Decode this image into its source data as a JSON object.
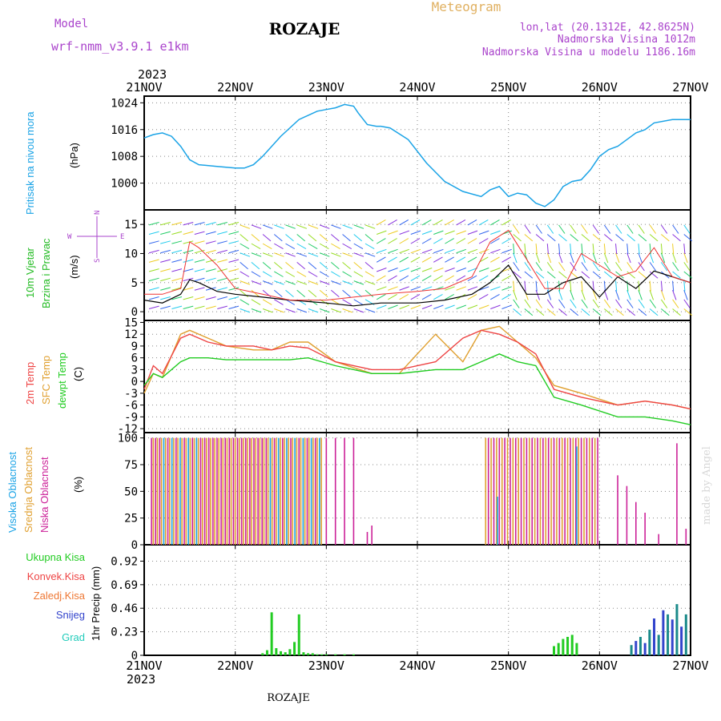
{
  "header": {
    "model_label": "Model",
    "model_name": "wrf-nmm_v3.9.1 e1km",
    "title": "ROZAJE",
    "meteogram": "Meteogram",
    "lonlat": "lon,lat (20.1312E, 42.8625N)",
    "elevation": "Nadmorska Visina 1012m",
    "model_elevation": "Nadmorska Visina u modelu 1186.16m",
    "footer": "ROZAJE",
    "credit": "made by Angel"
  },
  "colors": {
    "pressure": "#1aa3e6",
    "wind_label": "#22bb22",
    "temp2m": "#ee4444",
    "sfc": "#e0a030",
    "dewpt": "#22cc22",
    "cloud_high": "#1aa3e6",
    "cloud_mid": "#e0a030",
    "cloud_low": "#cc2299",
    "purple": "#aa44cc",
    "orange": "#e0b060",
    "rain_total": "#22cc22",
    "rain_conv": "#ee4444",
    "rain_frz": "#ee7733",
    "snow": "#3344cc",
    "graupel": "#22ccbb"
  },
  "time_axis": {
    "top_year": "2023",
    "bottom_year": "2023",
    "dates": [
      "21NOV",
      "22NOV",
      "23NOV",
      "24NOV",
      "25NOV",
      "26NOV",
      "27NOV"
    ]
  },
  "chart_data": [
    {
      "type": "line",
      "panel": "pressure",
      "ylabel_left": "Pritisak na nivou mora",
      "ylabel_unit": "(hPa)",
      "yticks": [
        "1000",
        "1008",
        "1016",
        "1024"
      ],
      "ylim": [
        992,
        1026
      ],
      "x": [
        0,
        0.1,
        0.2,
        0.3,
        0.4,
        0.5,
        0.6,
        0.8,
        1.0,
        1.1,
        1.2,
        1.3,
        1.5,
        1.7,
        1.9,
        2.0,
        2.1,
        2.2,
        2.3,
        2.35,
        2.45,
        2.55,
        2.6,
        2.7,
        2.9,
        3.1,
        3.3,
        3.5,
        3.7,
        3.8,
        3.9,
        4.0,
        4.1,
        4.2,
        4.3,
        4.4,
        4.5,
        4.6,
        4.7,
        4.8,
        4.9,
        5.0,
        5.1,
        5.2,
        5.3,
        5.4,
        5.5,
        5.6,
        5.8,
        6.0
      ],
      "series": [
        {
          "values": [
            1013.5,
            1014.5,
            1015,
            1014,
            1011,
            1007,
            1005.5,
            1005,
            1004.5,
            1004.5,
            1005.5,
            1008,
            1014,
            1019,
            1021.5,
            1022,
            1022.5,
            1023.5,
            1023,
            1021,
            1017.5,
            1017,
            1017,
            1016.5,
            1013,
            1006,
            1000.5,
            997.5,
            996,
            998,
            999,
            996,
            997,
            996.5,
            994,
            993,
            995,
            999,
            1000.5,
            1001,
            1004,
            1008,
            1010,
            1011,
            1013,
            1015,
            1016,
            1018,
            1019,
            1019
          ]
        }
      ]
    },
    {
      "type": "line",
      "panel": "wind",
      "ylabel_left": "10m Vjetar Brzina i Pravac",
      "ylabel_unit": "(m/s)",
      "compass": {
        "w": "W",
        "e": "E",
        "n": "N",
        "s": "S"
      },
      "yticks": [
        "0",
        "5",
        "10",
        "15"
      ],
      "ylim": [
        -1.5,
        17.5
      ],
      "x": [
        0,
        0.2,
        0.4,
        0.5,
        0.6,
        0.8,
        1.0,
        1.3,
        1.6,
        2.0,
        2.3,
        2.6,
        3.0,
        3.3,
        3.6,
        3.8,
        4.0,
        4.2,
        4.4,
        4.6,
        4.8,
        5.0,
        5.2,
        5.4,
        5.6,
        5.8,
        6.0
      ],
      "series": [
        {
          "values": [
            2,
            1.5,
            3,
            5.5,
            5,
            3.5,
            3,
            2.5,
            2,
            1.5,
            1,
            1.5,
            1.5,
            2,
            3,
            5,
            8,
            3,
            3,
            5,
            6,
            2.5,
            6,
            4,
            7,
            6,
            5
          ]
        },
        {
          "values": [
            3,
            3,
            4,
            12,
            11,
            8,
            4,
            3,
            2,
            2,
            2.5,
            3,
            3.5,
            4,
            6,
            12,
            14,
            9,
            4,
            4,
            10,
            8,
            6,
            7,
            11,
            6,
            5
          ]
        }
      ]
    },
    {
      "type": "line",
      "panel": "temperature",
      "series": [
        {
          "name": "2m Temp",
          "values": [
            -2,
            4,
            2,
            11,
            12,
            10,
            9,
            9,
            8,
            9,
            8.5,
            5,
            3,
            3,
            5,
            11,
            13,
            12,
            10,
            7,
            -2,
            -4,
            -6,
            -5,
            -6,
            -7
          ]
        },
        {
          "name": "SFC Temp",
          "values": [
            -3,
            2,
            1,
            12,
            13,
            11,
            9,
            8,
            8,
            10,
            10,
            5,
            2,
            2,
            12,
            5,
            13,
            14,
            10,
            6,
            -1,
            -3,
            -6,
            -5,
            -6,
            -7
          ]
        },
        {
          "name": "dewpt Temp",
          "values": [
            -1,
            2,
            1,
            5,
            6,
            6,
            5.5,
            5.5,
            5.5,
            5.5,
            6,
            4,
            2,
            2,
            3,
            3,
            5,
            7,
            5,
            4,
            -4,
            -6,
            -9,
            -9,
            -10,
            -11
          ]
        }
      ],
      "x": [
        0,
        0.1,
        0.2,
        0.4,
        0.5,
        0.7,
        0.9,
        1.2,
        1.4,
        1.6,
        1.8,
        2.1,
        2.5,
        2.8,
        3.2,
        3.5,
        3.7,
        3.9,
        4.1,
        4.3,
        4.5,
        4.8,
        5.2,
        5.5,
        5.8,
        6.0
      ],
      "yticks": [
        "-12",
        "-9",
        "-6",
        "-3",
        "0",
        "3",
        "6",
        "9",
        "12",
        "15"
      ],
      "ylim": [
        -13,
        15.5
      ]
    },
    {
      "type": "bar",
      "panel": "clouds",
      "series_names": [
        "Visoka Oblacnost",
        "Srednja Oblacnost",
        "Niska Oblacnost"
      ],
      "ylabel_unit": "(%)",
      "yticks": [
        "0",
        "25",
        "50",
        "75",
        "100"
      ],
      "ylim": [
        0,
        105
      ]
    },
    {
      "type": "bar",
      "panel": "precip",
      "legend": [
        "Ukupna Kisa",
        "Konvek.Kisa",
        "Zaledj.Kisa",
        "Snijeg",
        "Grad"
      ],
      "ylabel_unit": "1hr Precip (mm)",
      "yticks": [
        "0",
        "0.23",
        "0.46",
        "0.69",
        "0.92"
      ],
      "ylim": [
        0,
        1.08
      ],
      "x": [
        1.3,
        1.35,
        1.4,
        1.45,
        1.5,
        1.55,
        1.6,
        1.65,
        1.7,
        1.75,
        1.8,
        1.85,
        1.9,
        1.95,
        2.0,
        2.1,
        2.2,
        2.3,
        4.5,
        4.55,
        4.6,
        4.65,
        4.7,
        4.75,
        5.35,
        5.4,
        5.45,
        5.5,
        5.55,
        5.6,
        5.65,
        5.7,
        5.75,
        5.8,
        5.85,
        5.9,
        5.95
      ],
      "values": [
        0.02,
        0.05,
        0.42,
        0.07,
        0.04,
        0.03,
        0.06,
        0.13,
        0.4,
        0.03,
        0.02,
        0.02,
        0.01,
        0.01,
        0.01,
        0.01,
        0.01,
        0.01,
        0.09,
        0.12,
        0.16,
        0.18,
        0.2,
        0.12,
        0.1,
        0.14,
        0.18,
        0.12,
        0.25,
        0.36,
        0.2,
        0.44,
        0.4,
        0.35,
        0.5,
        0.28,
        0.4
      ]
    }
  ]
}
